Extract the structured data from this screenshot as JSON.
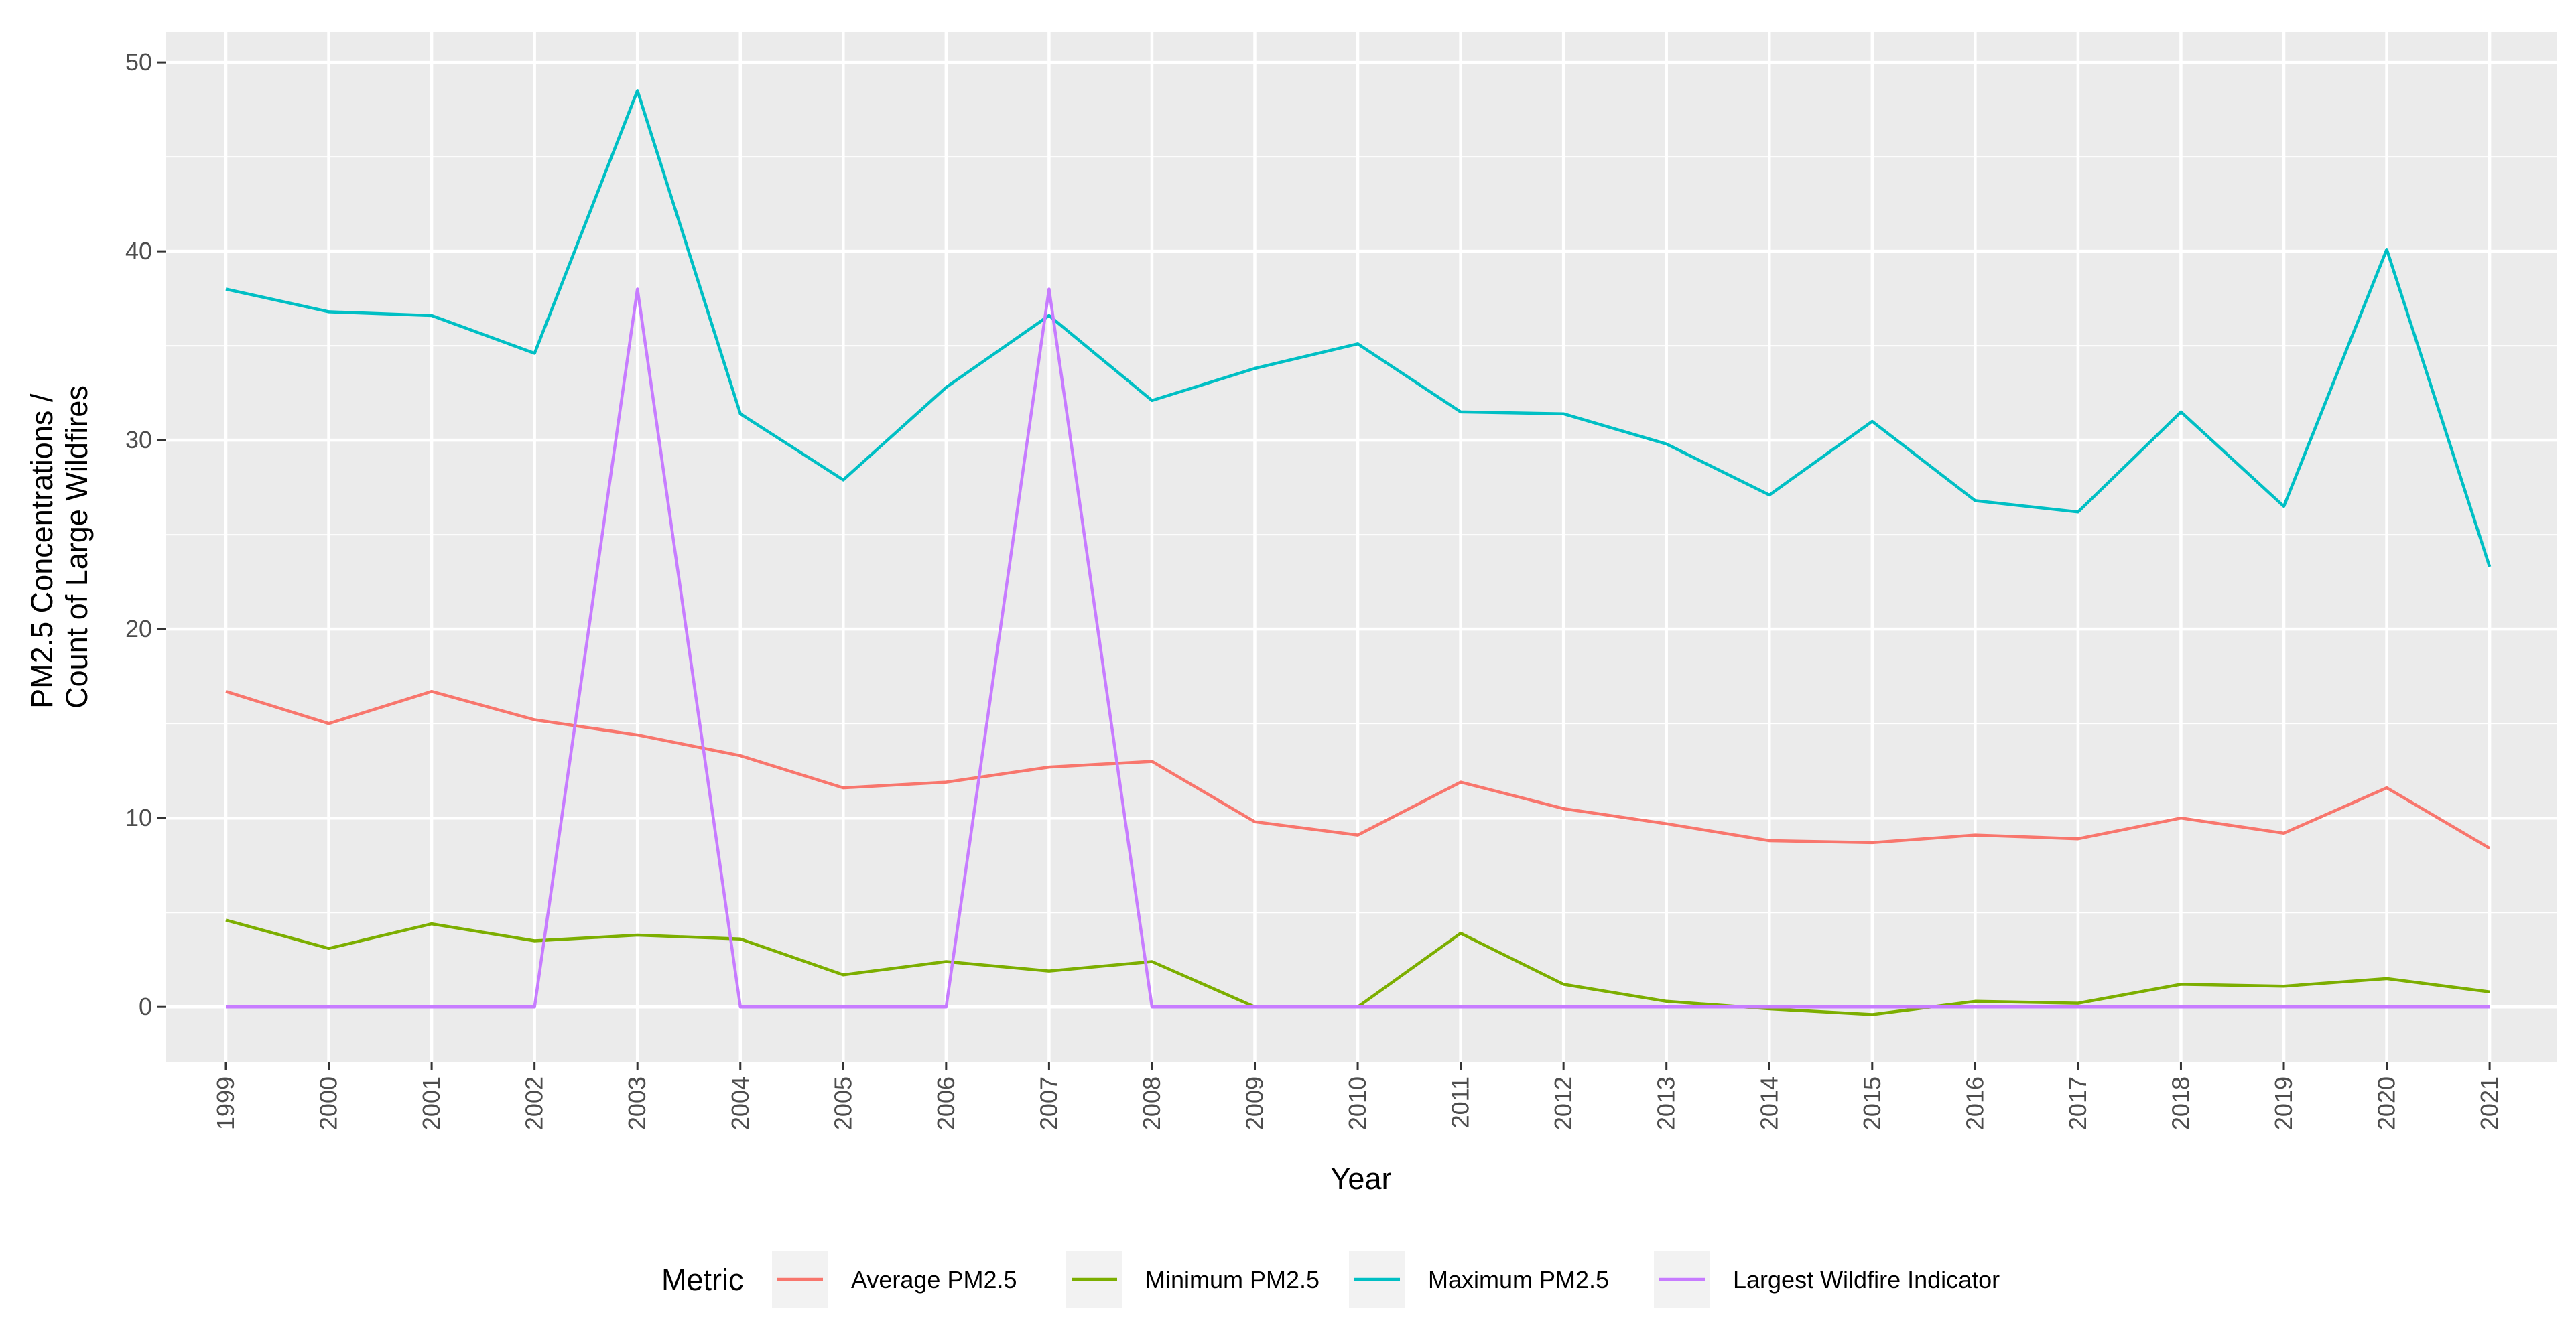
{
  "chart_data": {
    "type": "line",
    "title": "",
    "xlabel": "Year",
    "ylabel_lines": [
      "PM2.5 Concentrations /",
      "Count of Large Wildfires"
    ],
    "x": [
      "1999",
      "2000",
      "2001",
      "2002",
      "2003",
      "2004",
      "2005",
      "2006",
      "2007",
      "2008",
      "2009",
      "2010",
      "2011",
      "2012",
      "2013",
      "2014",
      "2015",
      "2016",
      "2017",
      "2018",
      "2019",
      "2020",
      "2021"
    ],
    "ylim": [
      -2.9,
      51.6
    ],
    "yticks": [
      0,
      10,
      20,
      30,
      40,
      50
    ],
    "grid": true,
    "legend": {
      "title": "Metric",
      "position": "bottom"
    },
    "series": [
      {
        "name": "Average PM2.5",
        "color": "#F8766D",
        "values": [
          16.7,
          15.0,
          16.7,
          15.2,
          14.4,
          13.3,
          11.6,
          11.9,
          12.7,
          13.0,
          9.8,
          9.1,
          11.9,
          10.5,
          9.7,
          8.8,
          8.7,
          9.1,
          8.9,
          10.0,
          9.2,
          11.6,
          8.4
        ]
      },
      {
        "name": "Minimum PM2.5",
        "color": "#7CAE00",
        "values": [
          4.6,
          3.1,
          4.4,
          3.5,
          3.8,
          3.6,
          1.7,
          2.4,
          1.9,
          2.4,
          0.0,
          0.0,
          3.9,
          1.2,
          0.3,
          -0.1,
          -0.4,
          0.3,
          0.2,
          1.2,
          1.1,
          1.5,
          0.8
        ]
      },
      {
        "name": "Maximum PM2.5",
        "color": "#00BFC4",
        "values": [
          38.0,
          36.8,
          36.6,
          34.6,
          48.5,
          31.4,
          27.9,
          32.8,
          36.6,
          32.1,
          33.8,
          35.1,
          31.5,
          31.4,
          29.8,
          27.1,
          31.0,
          26.8,
          26.2,
          31.5,
          26.5,
          40.1,
          23.3
        ]
      },
      {
        "name": "Largest Wildfire Indicator",
        "color": "#C77CFF",
        "values": [
          0,
          0,
          0,
          0,
          38,
          0,
          0,
          0,
          38,
          0,
          0,
          0,
          0,
          0,
          0,
          0,
          0,
          0,
          0,
          0,
          0,
          0,
          0
        ]
      }
    ]
  }
}
